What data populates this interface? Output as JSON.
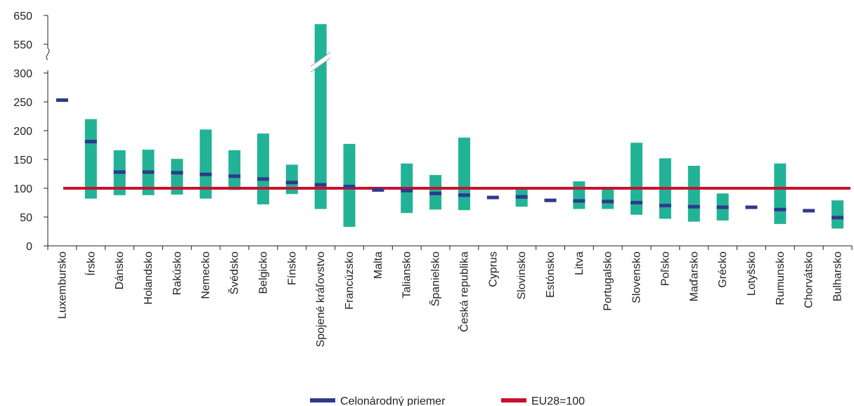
{
  "chart_data": {
    "type": "bar",
    "subtype": "range-bar-with-marker",
    "categories": [
      "Luxembursko",
      "Írsko",
      "Dánsko",
      "Holandsko",
      "Rakúsko",
      "Nemecko",
      "Švédsko",
      "Belgicko",
      "Fínsko",
      "Spojené kráľovstvo",
      "Francúzsko",
      "Malta",
      "Taliansko",
      "Španielsko",
      "Česká republika",
      "Cyprus",
      "Slovinsko",
      "Estónsko",
      "Litva",
      "Portugalsko",
      "Slovensko",
      "Poľsko",
      "Maďarsko",
      "Grécko",
      "Lotyšsko",
      "Rumunsko",
      "Chorvátsko",
      "Bulharsko"
    ],
    "range_min": [
      null,
      82,
      88,
      88,
      89,
      82,
      97,
      72,
      90,
      64,
      33,
      null,
      57,
      63,
      62,
      null,
      68,
      null,
      64,
      64,
      54,
      47,
      42,
      44,
      null,
      38,
      null,
      30
    ],
    "range_max": [
      null,
      220,
      166,
      167,
      151,
      202,
      166,
      195,
      141,
      620,
      177,
      null,
      143,
      123,
      188,
      null,
      101,
      null,
      112,
      101,
      179,
      152,
      139,
      91,
      null,
      143,
      null,
      79
    ],
    "national_average": [
      253,
      181,
      128,
      128,
      127,
      124,
      121,
      116,
      110,
      106,
      103,
      97,
      96,
      91,
      88,
      84,
      85,
      79,
      78,
      77,
      75,
      70,
      68,
      67,
      67,
      63,
      61,
      49
    ],
    "reference_line": 100,
    "series": [
      {
        "name": "Celonárodný priemer",
        "color": "#2e3a8c"
      },
      {
        "name": "EU28=100",
        "color": "#c8102e"
      }
    ],
    "range_color": "#22b396",
    "y_ticks": [
      "0",
      "50",
      "100",
      "150",
      "200",
      "250",
      "300",
      "550",
      "650"
    ],
    "y_tick_values": [
      0,
      50,
      100,
      150,
      200,
      250,
      300,
      550,
      650
    ],
    "ylim": [
      0,
      650
    ],
    "axis_break": [
      300,
      550
    ],
    "grid": false,
    "legend_position": "bottom-center"
  }
}
